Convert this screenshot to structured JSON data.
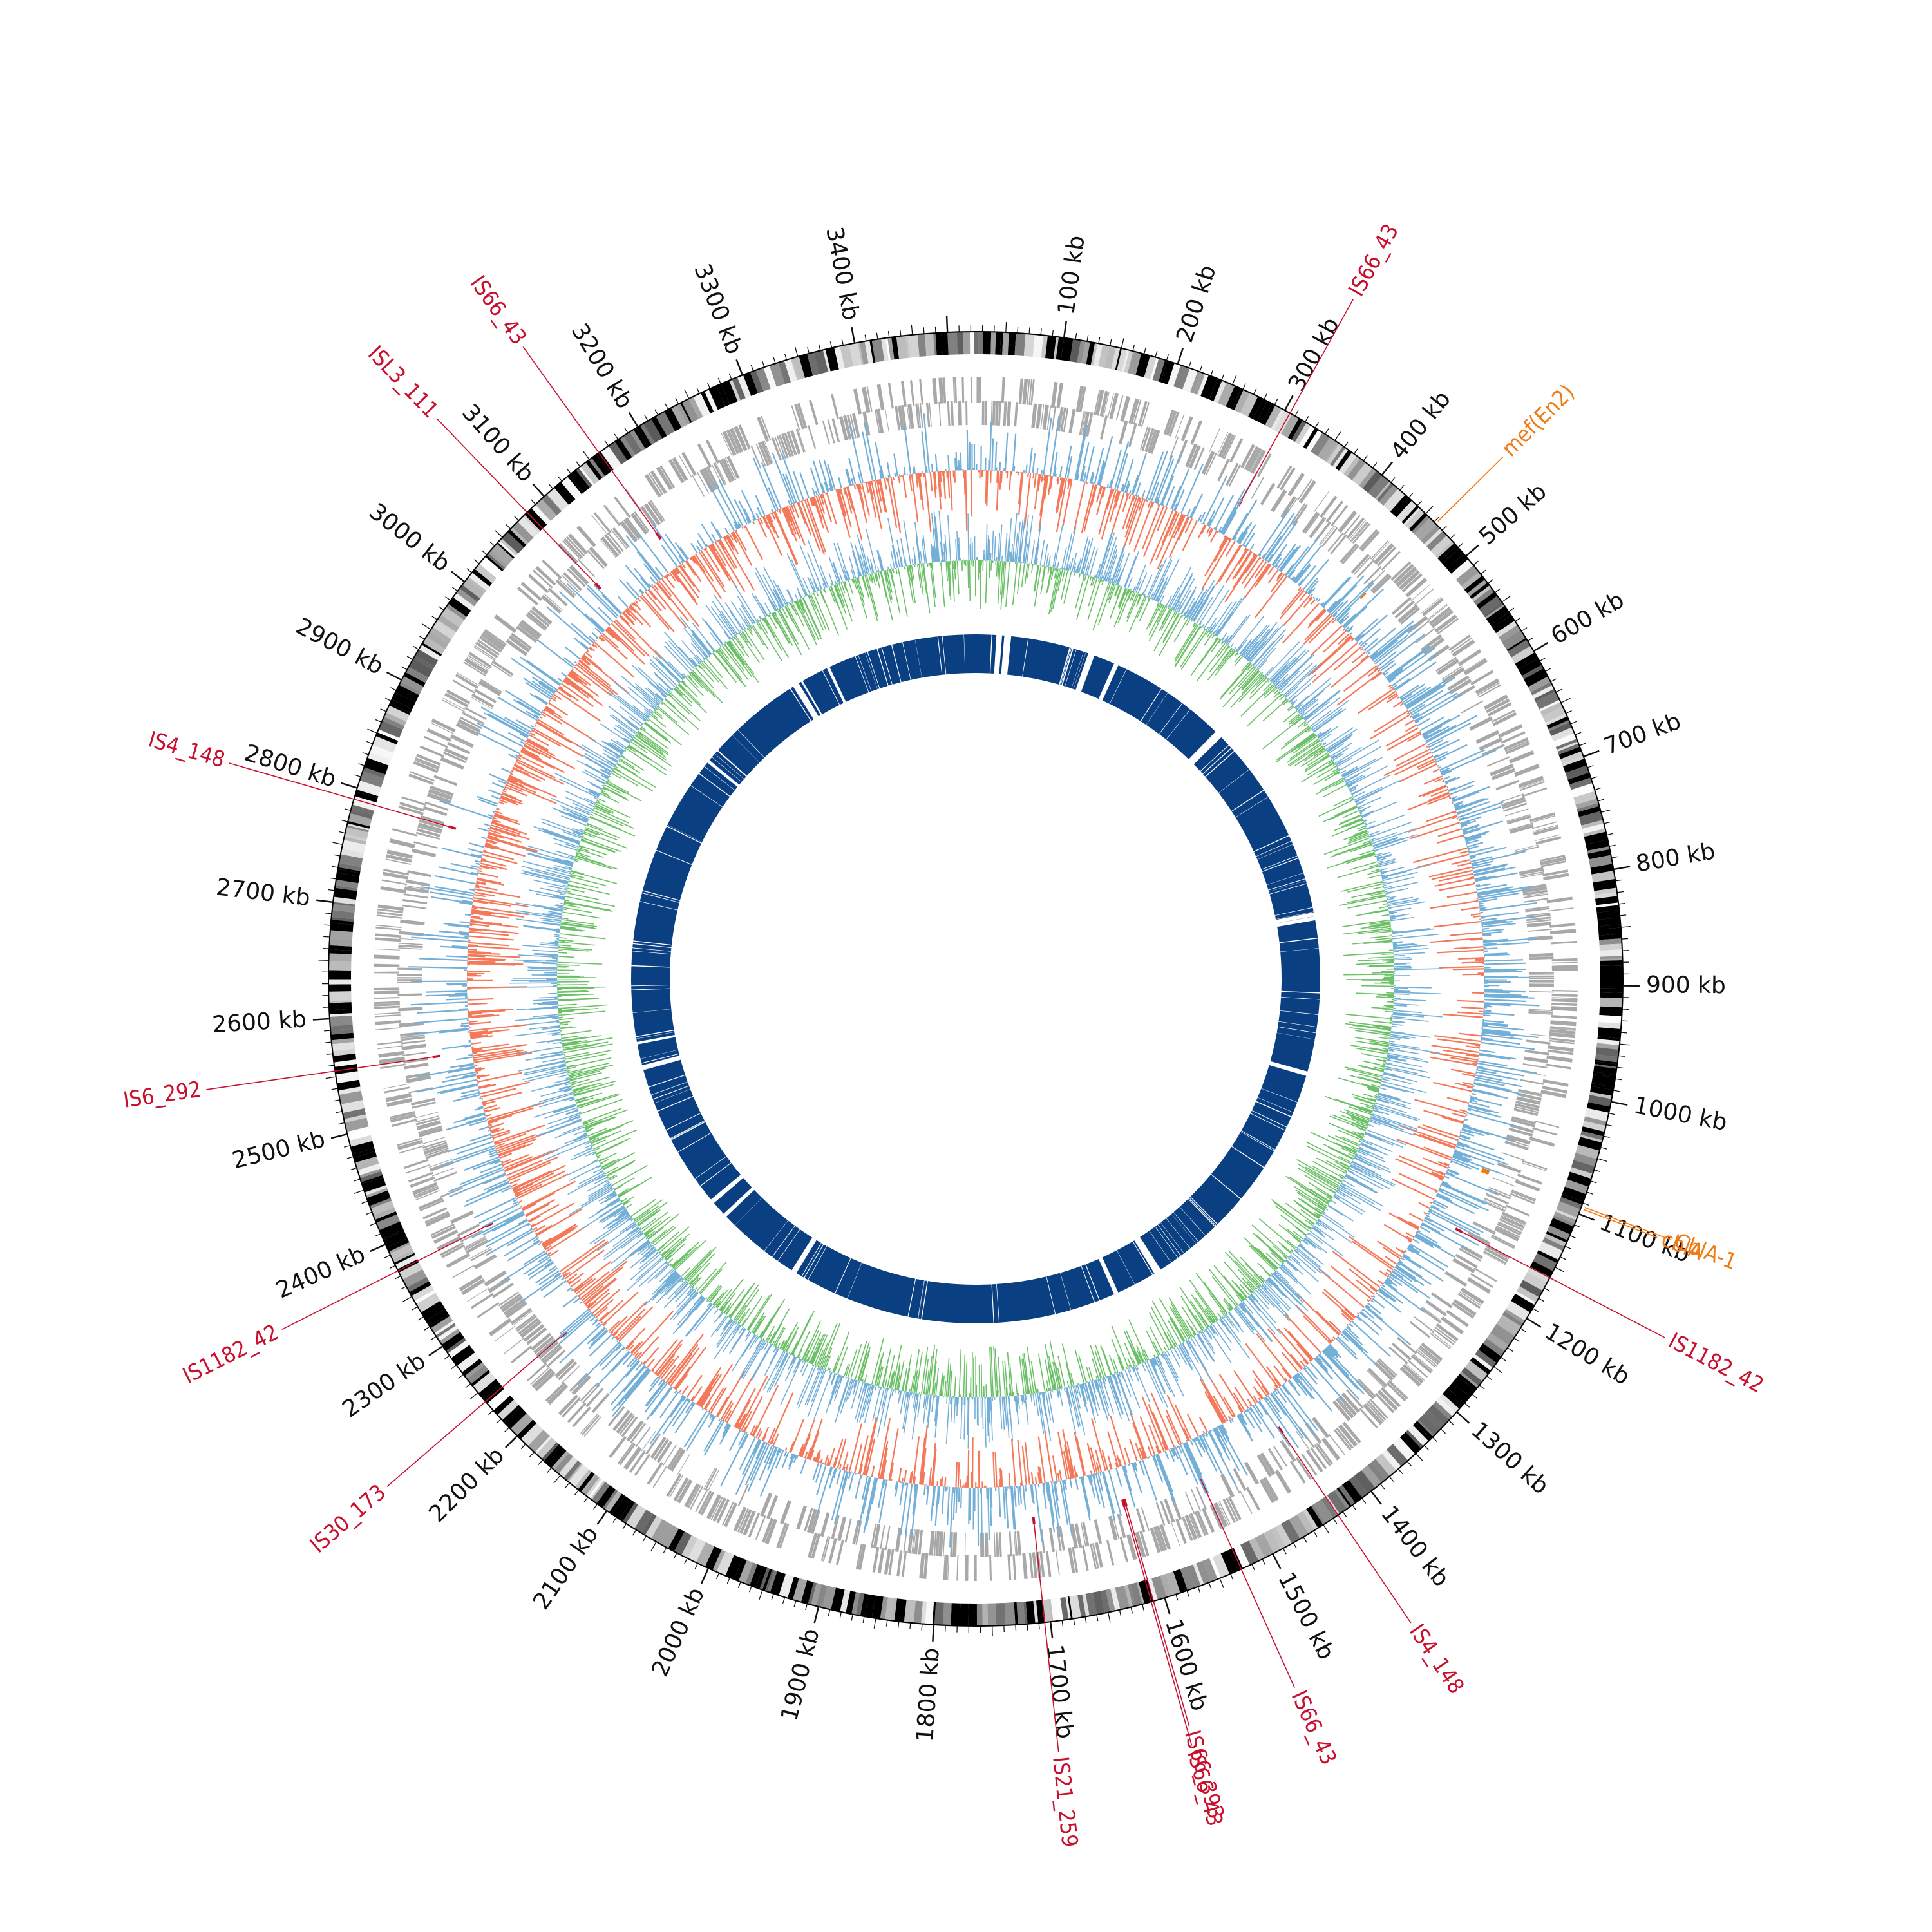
{
  "genome": {
    "length_kb": 3480,
    "tick_labels": [
      {
        "kb": 100,
        "text": "100 kb"
      },
      {
        "kb": 200,
        "text": "200 kb"
      },
      {
        "kb": 300,
        "text": "300 kb"
      },
      {
        "kb": 400,
        "text": "400 kb"
      },
      {
        "kb": 500,
        "text": "500 kb"
      },
      {
        "kb": 600,
        "text": "600 kb"
      },
      {
        "kb": 700,
        "text": "700 kb"
      },
      {
        "kb": 800,
        "text": "800 kb"
      },
      {
        "kb": 900,
        "text": "900 kb"
      },
      {
        "kb": 1000,
        "text": "1000 kb"
      },
      {
        "kb": 1100,
        "text": "1100 kb"
      },
      {
        "kb": 1200,
        "text": "1200 kb"
      },
      {
        "kb": 1300,
        "text": "1300 kb"
      },
      {
        "kb": 1400,
        "text": "1400 kb"
      },
      {
        "kb": 1500,
        "text": "1500 kb"
      },
      {
        "kb": 1600,
        "text": "1600 kb"
      },
      {
        "kb": 1700,
        "text": "1700 kb"
      },
      {
        "kb": 1800,
        "text": "1800 kb"
      },
      {
        "kb": 1900,
        "text": "1900 kb"
      },
      {
        "kb": 2000,
        "text": "2000 kb"
      },
      {
        "kb": 2100,
        "text": "2100 kb"
      },
      {
        "kb": 2200,
        "text": "2200 kb"
      },
      {
        "kb": 2300,
        "text": "2300 kb"
      },
      {
        "kb": 2400,
        "text": "2400 kb"
      },
      {
        "kb": 2500,
        "text": "2500 kb"
      },
      {
        "kb": 2600,
        "text": "2600 kb"
      },
      {
        "kb": 2700,
        "text": "2700 kb"
      },
      {
        "kb": 2800,
        "text": "2800 kb"
      },
      {
        "kb": 2900,
        "text": "2900 kb"
      },
      {
        "kb": 3000,
        "text": "3000 kb"
      },
      {
        "kb": 3100,
        "text": "3100 kb"
      },
      {
        "kb": 3200,
        "text": "3200 kb"
      },
      {
        "kb": 3300,
        "text": "3300 kb"
      },
      {
        "kb": 3400,
        "text": "3400 kb"
      }
    ]
  },
  "mobile_elements": [
    {
      "kb": 305,
      "text": "IS66_43",
      "category": "is"
    },
    {
      "kb": 1160,
      "text": "IS1182_42",
      "category": "is"
    },
    {
      "kb": 1435,
      "text": "IS4_148",
      "category": "is"
    },
    {
      "kb": 1530,
      "text": "IS66_43",
      "category": "is"
    },
    {
      "kb": 1610,
      "text": "IS66_393",
      "category": "is"
    },
    {
      "kb": 1612,
      "text": "IS66_43",
      "category": "is"
    },
    {
      "kb": 1705,
      "text": "IS21_259",
      "category": "is"
    },
    {
      "kb": 2240,
      "text": "IS30_173",
      "category": "is"
    },
    {
      "kb": 2375,
      "text": "IS1182_42",
      "category": "is"
    },
    {
      "kb": 2555,
      "text": "IS6_292",
      "category": "is"
    },
    {
      "kb": 2790,
      "text": "IS4_148",
      "category": "is"
    },
    {
      "kb": 3080,
      "text": "ISL3_111",
      "category": "is"
    },
    {
      "kb": 3160,
      "text": "IS66_43",
      "category": "is"
    }
  ],
  "resistance_genes": [
    {
      "kb": 462,
      "text": "mef(En2)",
      "category": "arg"
    },
    {
      "kb": 1093,
      "text": "CblA-1",
      "category": "arg"
    },
    {
      "kb": 1095,
      "text": "cblA",
      "category": "arg"
    }
  ],
  "colors": {
    "ideogram_dark": "#000000",
    "ideogram_light": "#ffffff",
    "gene_track": "#a8a8a8",
    "gc_skew_positive": "#74afd8",
    "gc_skew_negative": "#f4795a",
    "gc_content_positive": "#74afd8",
    "gc_content_negative": "#6cc067",
    "homology_track": "#0a3f82",
    "mge_label": "#c8102e",
    "arg_label": "#f07a14",
    "tick": "#111111",
    "background": "#ffffff"
  }
}
